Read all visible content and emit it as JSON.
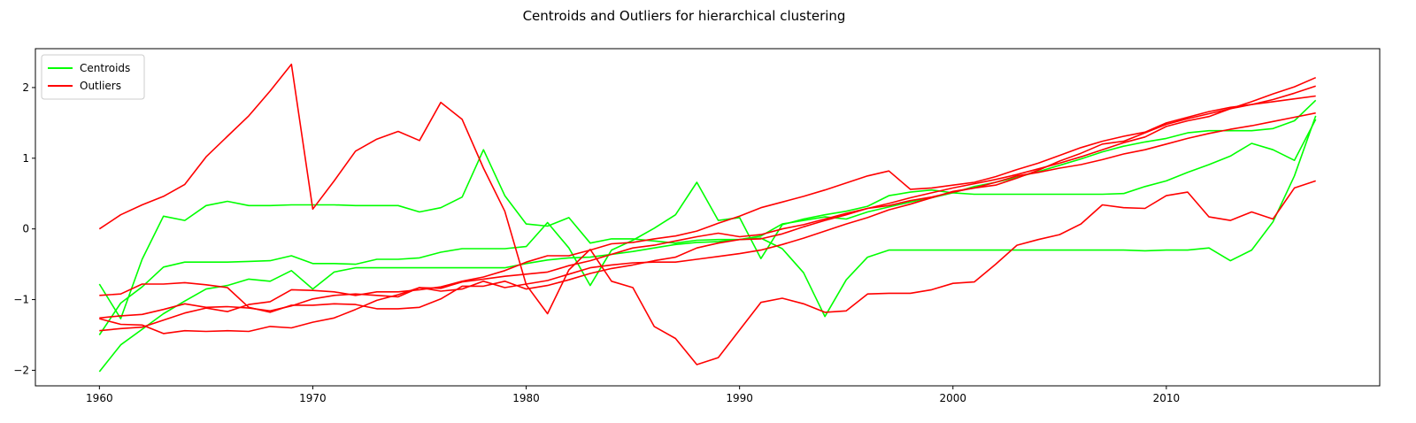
{
  "chart_data": {
    "type": "line",
    "title": "Centroids and Outliers for hierarchical clustering",
    "xlabel": "",
    "ylabel": "",
    "xlim": [
      1957,
      2020
    ],
    "ylim": [
      -2.22,
      2.55
    ],
    "xticks": [
      1960,
      1970,
      1980,
      1990,
      2000,
      2010
    ],
    "yticks": [
      -2,
      -1,
      0,
      1,
      2
    ],
    "ytick_labels": [
      "−2",
      "−1",
      "0",
      "1",
      "2"
    ],
    "grid": false,
    "legend": {
      "placement": "top-left",
      "entries": [
        {
          "label": "Centroids",
          "color": "#00ff00"
        },
        {
          "label": "Outliers",
          "color": "#ff0000"
        }
      ]
    },
    "x": [
      1960,
      1961,
      1962,
      1963,
      1964,
      1965,
      1966,
      1967,
      1968,
      1969,
      1970,
      1971,
      1972,
      1973,
      1974,
      1975,
      1976,
      1977,
      1978,
      1979,
      1980,
      1981,
      1982,
      1983,
      1984,
      1985,
      1986,
      1987,
      1988,
      1989,
      1990,
      1991,
      1992,
      1993,
      1994,
      1995,
      1996,
      1997,
      1998,
      1999,
      2000,
      2001,
      2002,
      2003,
      2004,
      2005,
      2006,
      2007,
      2008,
      2009,
      2010,
      2011,
      2012,
      2013,
      2014,
      2015,
      2016,
      2017
    ],
    "series": [
      {
        "group": "Centroids",
        "color": "#00ff00",
        "values": [
          -0.78,
          -1.27,
          -0.43,
          0.18,
          0.12,
          0.33,
          0.39,
          0.33,
          0.33,
          0.34,
          0.34,
          0.34,
          0.33,
          0.33,
          0.33,
          0.24,
          0.3,
          0.45,
          1.12,
          0.47,
          0.07,
          0.04,
          0.16,
          -0.2,
          -0.14,
          -0.14,
          -0.17,
          -0.2,
          -0.16,
          -0.15,
          -0.15,
          -0.13,
          -0.28,
          -0.62,
          -1.24,
          -0.72,
          -0.4,
          -0.3,
          -0.3,
          -0.3,
          -0.3,
          -0.3,
          -0.3,
          -0.3,
          -0.3,
          -0.3,
          -0.3,
          -0.3,
          -0.3,
          -0.31,
          -0.3,
          -0.3,
          -0.27,
          -0.45,
          -0.3,
          0.1,
          0.75,
          1.6
        ]
      },
      {
        "group": "Centroids",
        "color": "#00ff00",
        "values": [
          -1.5,
          -1.05,
          -0.82,
          -0.54,
          -0.47,
          -0.47,
          -0.47,
          -0.46,
          -0.45,
          -0.38,
          -0.49,
          -0.49,
          -0.5,
          -0.43,
          -0.43,
          -0.41,
          -0.33,
          -0.28,
          -0.28,
          -0.28,
          -0.25,
          0.09,
          -0.27,
          -0.8,
          -0.3,
          -0.16,
          0.01,
          0.2,
          0.66,
          0.12,
          0.16,
          -0.42,
          0.06,
          0.14,
          0.2,
          0.25,
          0.32,
          0.47,
          0.52,
          0.55,
          0.51,
          0.49,
          0.49,
          0.49,
          0.49,
          0.49,
          0.49,
          0.49,
          0.5,
          0.6,
          0.68,
          0.8,
          0.91,
          1.03,
          1.21,
          1.12,
          0.97,
          1.55
        ]
      },
      {
        "group": "Centroids",
        "color": "#00ff00",
        "values": [
          -2.02,
          -1.64,
          -1.42,
          -1.2,
          -1.02,
          -0.85,
          -0.8,
          -0.71,
          -0.74,
          -0.59,
          -0.85,
          -0.61,
          -0.55,
          -0.55,
          -0.55,
          -0.55,
          -0.55,
          -0.55,
          -0.55,
          -0.55,
          -0.49,
          -0.44,
          -0.41,
          -0.4,
          -0.36,
          -0.32,
          -0.27,
          -0.22,
          -0.19,
          -0.18,
          -0.15,
          -0.1,
          0.07,
          0.12,
          0.17,
          0.14,
          0.24,
          0.31,
          0.38,
          0.44,
          0.51,
          0.6,
          0.66,
          0.73,
          0.81,
          0.9,
          0.99,
          1.09,
          1.17,
          1.23,
          1.28,
          1.36,
          1.39,
          1.39,
          1.39,
          1.42,
          1.53,
          1.82
        ]
      },
      {
        "group": "Outliers",
        "color": "#ff0000",
        "values": [
          0.0,
          0.2,
          0.34,
          0.46,
          0.63,
          1.02,
          1.31,
          1.6,
          1.95,
          2.33,
          0.28,
          0.68,
          1.1,
          1.27,
          1.38,
          1.25,
          1.79,
          1.55,
          0.86,
          0.25,
          -0.79,
          -1.2,
          -0.58,
          -0.29,
          -0.74,
          -0.83,
          -1.38,
          -1.55,
          -1.92,
          -1.82,
          -1.43,
          -1.04,
          -0.98,
          -1.06,
          -1.18,
          -1.16,
          -0.92,
          -0.91,
          -0.91,
          -0.86,
          -0.77,
          -0.75,
          -0.5,
          -0.23,
          -0.15,
          -0.08,
          0.07,
          0.34,
          0.3,
          0.29,
          0.47,
          0.52,
          0.17,
          0.12,
          0.24,
          0.14,
          0.58,
          0.68
        ]
      },
      {
        "group": "Outliers",
        "color": "#ff0000",
        "values": [
          -1.27,
          -1.35,
          -1.36,
          -1.48,
          -1.44,
          -1.45,
          -1.44,
          -1.45,
          -1.38,
          -1.4,
          -1.32,
          -1.26,
          -1.14,
          -1.01,
          -0.93,
          -0.83,
          -0.88,
          -0.85,
          -0.74,
          -0.83,
          -0.78,
          -0.73,
          -0.64,
          -0.55,
          -0.51,
          -0.48,
          -0.47,
          -0.47,
          -0.43,
          -0.39,
          -0.35,
          -0.3,
          -0.22,
          -0.13,
          -0.03,
          0.07,
          0.16,
          0.27,
          0.35,
          0.44,
          0.53,
          0.58,
          0.62,
          0.72,
          0.83,
          0.96,
          1.07,
          1.2,
          1.24,
          1.36,
          1.48,
          1.56,
          1.63,
          1.7,
          1.76,
          1.8,
          1.84,
          1.88
        ]
      },
      {
        "group": "Outliers",
        "color": "#ff0000",
        "values": [
          -0.94,
          -0.92,
          -0.78,
          -0.78,
          -0.76,
          -0.79,
          -0.83,
          -1.11,
          -1.18,
          -1.08,
          -1.08,
          -1.06,
          -1.07,
          -1.13,
          -1.13,
          -1.11,
          -0.99,
          -0.81,
          -0.81,
          -0.74,
          -0.85,
          -0.8,
          -0.72,
          -0.63,
          -0.56,
          -0.51,
          -0.45,
          -0.4,
          -0.27,
          -0.2,
          -0.15,
          -0.14,
          -0.07,
          0.03,
          0.12,
          0.2,
          0.29,
          0.36,
          0.44,
          0.51,
          0.58,
          0.64,
          0.7,
          0.77,
          0.85,
          0.93,
          1.02,
          1.12,
          1.22,
          1.3,
          1.45,
          1.53,
          1.59,
          1.7,
          1.8,
          1.91,
          2.01,
          2.14
        ]
      },
      {
        "group": "Outliers",
        "color": "#ff0000",
        "values": [
          -1.44,
          -1.41,
          -1.39,
          -1.29,
          -1.19,
          -1.12,
          -1.17,
          -1.07,
          -1.03,
          -0.86,
          -0.87,
          -0.89,
          -0.94,
          -0.89,
          -0.89,
          -0.86,
          -0.82,
          -0.74,
          -0.68,
          -0.59,
          -0.47,
          -0.38,
          -0.38,
          -0.3,
          -0.21,
          -0.19,
          -0.14,
          -0.1,
          -0.03,
          0.08,
          0.18,
          0.3,
          0.38,
          0.46,
          0.55,
          0.65,
          0.75,
          0.82,
          0.56,
          0.58,
          0.62,
          0.66,
          0.74,
          0.84,
          0.93,
          1.04,
          1.15,
          1.24,
          1.31,
          1.37,
          1.5,
          1.58,
          1.66,
          1.72,
          1.76,
          1.83,
          1.92,
          2.02
        ]
      },
      {
        "group": "Outliers",
        "color": "#ff0000",
        "values": [
          -1.26,
          -1.23,
          -1.21,
          -1.14,
          -1.06,
          -1.11,
          -1.1,
          -1.12,
          -1.16,
          -1.09,
          -0.99,
          -0.94,
          -0.92,
          -0.94,
          -0.96,
          -0.83,
          -0.84,
          -0.75,
          -0.71,
          -0.67,
          -0.64,
          -0.61,
          -0.52,
          -0.45,
          -0.36,
          -0.27,
          -0.23,
          -0.17,
          -0.11,
          -0.06,
          -0.11,
          -0.08,
          0.0,
          0.06,
          0.14,
          0.22,
          0.29,
          0.33,
          0.4,
          0.45,
          0.52,
          0.58,
          0.66,
          0.75,
          0.8,
          0.86,
          0.91,
          0.98,
          1.06,
          1.12,
          1.2,
          1.28,
          1.35,
          1.41,
          1.46,
          1.52,
          1.58,
          1.64
        ]
      }
    ]
  }
}
